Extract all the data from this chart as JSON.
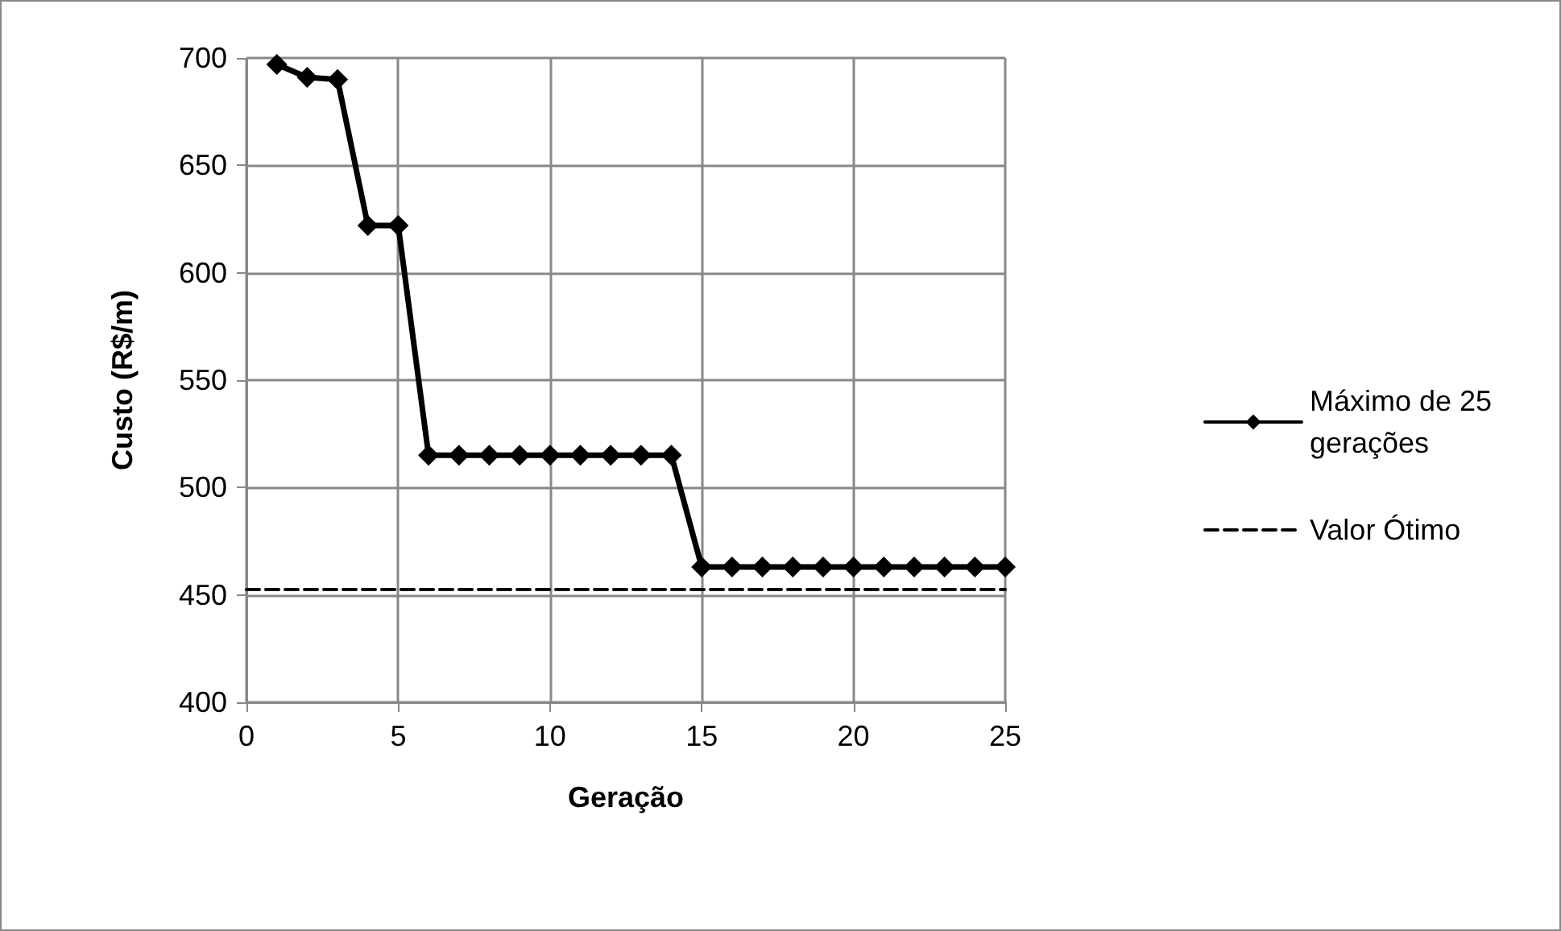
{
  "chart_data": {
    "type": "line",
    "xlabel": "Geração",
    "ylabel": "Custo (R$/m)",
    "series": [
      {
        "name": "Máximo de 25 gerações",
        "color": "#000000",
        "marker": "diamond",
        "line_style": "solid",
        "x": [
          1,
          2,
          3,
          4,
          5,
          6,
          7,
          8,
          9,
          10,
          11,
          12,
          13,
          14,
          15,
          16,
          17,
          18,
          19,
          20,
          21,
          22,
          23,
          24,
          25
        ],
        "values": [
          697,
          691,
          690,
          622,
          622,
          515,
          515,
          515,
          515,
          515,
          515,
          515,
          515,
          515,
          463,
          463,
          463,
          463,
          463,
          463,
          463,
          463,
          463,
          463,
          463
        ]
      },
      {
        "name": "Valor Ótimo",
        "color": "#000000",
        "marker": "none",
        "line_style": "dashed",
        "x": [
          0,
          25
        ],
        "values": [
          452.5,
          452.5
        ]
      }
    ],
    "xlim": [
      0,
      25
    ],
    "xticks": [
      0,
      5,
      10,
      15,
      20,
      25
    ],
    "ylim": [
      400,
      700
    ],
    "yticks": [
      400,
      450,
      500,
      550,
      600,
      650,
      700
    ],
    "grid": true,
    "legend": "right"
  }
}
